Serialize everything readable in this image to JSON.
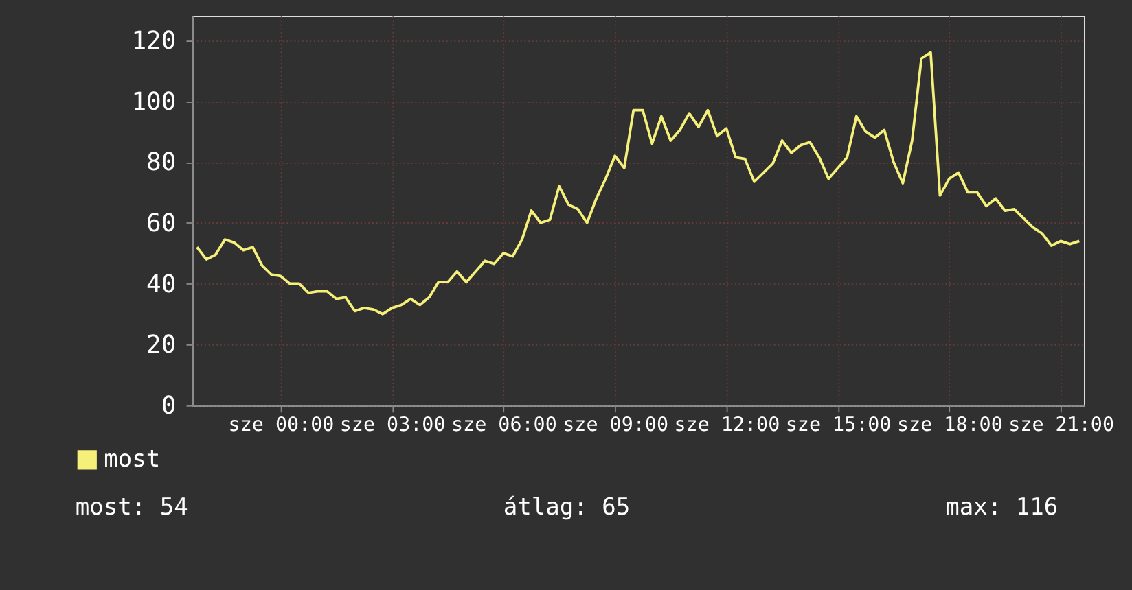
{
  "chart_data": {
    "type": "line",
    "categories": [
      null,
      null,
      null,
      null,
      null,
      null,
      null,
      null,
      null,
      "sze 00:00",
      null,
      null,
      null,
      null,
      null,
      null,
      null,
      null,
      null,
      null,
      null,
      "sze 03:00",
      null,
      null,
      null,
      null,
      null,
      null,
      null,
      null,
      null,
      null,
      null,
      "sze 06:00",
      null,
      null,
      null,
      null,
      null,
      null,
      null,
      null,
      null,
      null,
      null,
      "sze 09:00",
      null,
      null,
      null,
      null,
      null,
      null,
      null,
      null,
      null,
      null,
      null,
      "sze 12:00",
      null,
      null,
      null,
      null,
      null,
      null,
      null,
      null,
      null,
      null,
      null,
      "sze 15:00",
      null,
      null,
      null,
      null,
      null,
      null,
      null,
      null,
      null,
      null,
      null,
      "sze 18:00",
      null,
      null,
      null,
      null,
      null,
      null,
      null,
      null,
      null,
      null,
      null,
      "sze 21:00",
      null,
      null
    ],
    "series": [
      {
        "name": "most",
        "color": "#f5f07a",
        "values": [
          52,
          48,
          49.5,
          54.5,
          53.5,
          51,
          52,
          46,
          43,
          42.5,
          40,
          40,
          37,
          37.5,
          37.5,
          35,
          35.5,
          31,
          32,
          31.5,
          30,
          32,
          33,
          35,
          33,
          35.5,
          40.5,
          40.5,
          44,
          40.5,
          44,
          47.5,
          46.5,
          50,
          49,
          54.5,
          64,
          60,
          61,
          72,
          66,
          64.5,
          60,
          68,
          74.5,
          82,
          78,
          97,
          97,
          86,
          95,
          87,
          90.5,
          96,
          91.5,
          97,
          88.5,
          91,
          81.5,
          81,
          73.5,
          76.5,
          79.5,
          87,
          83,
          85.5,
          86.5,
          81.5,
          74.5,
          78,
          81.5,
          95,
          90,
          88,
          90.5,
          80,
          73,
          87,
          114,
          116,
          69,
          74.5,
          76.5,
          70,
          70,
          65.5,
          68,
          64,
          64.5,
          61.5,
          58.5,
          56.5,
          52.5,
          54,
          53,
          54
        ]
      }
    ],
    "ylim": [
      0,
      128
    ],
    "yticks": [
      0,
      20,
      40,
      60,
      80,
      100,
      120
    ],
    "grid": true,
    "legend": "bottom",
    "annotations": [
      "most: 54",
      "átlag: 65",
      "max: 116"
    ]
  }
}
